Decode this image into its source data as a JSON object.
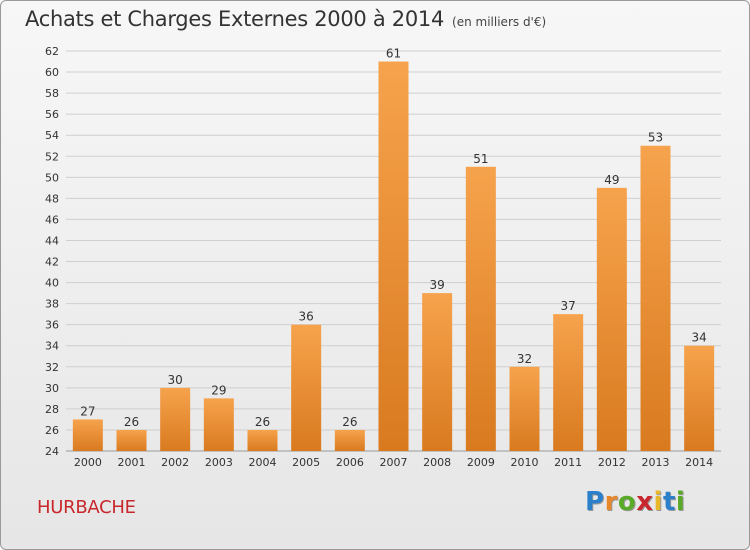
{
  "title": "Achats et Charges Externes 2000 à 2014",
  "unit": "(en milliers d'€)",
  "commune": "HURBACHE",
  "brand": {
    "text": "Proxiti",
    "letter_colors": [
      "#2c7fc9",
      "#e8862a",
      "#5aaa2a",
      "#c8282d",
      "#e8b82a",
      "#2c7fc9",
      "#5aaa2a"
    ]
  },
  "colors": {
    "bar_light": "#f6a34d",
    "bar_dark": "#d97a1f",
    "grid": "#cfcfcf",
    "text": "#333333"
  },
  "chart_data": {
    "type": "bar",
    "categories": [
      "2000",
      "2001",
      "2002",
      "2003",
      "2004",
      "2005",
      "2006",
      "2007",
      "2008",
      "2009",
      "2010",
      "2011",
      "2012",
      "2013",
      "2014"
    ],
    "values": [
      27,
      26,
      30,
      29,
      26,
      36,
      26,
      61,
      39,
      51,
      32,
      37,
      49,
      53,
      34
    ],
    "ylim": [
      24,
      62
    ],
    "yticks": [
      24,
      26,
      28,
      30,
      32,
      34,
      36,
      38,
      40,
      42,
      44,
      46,
      48,
      50,
      52,
      54,
      56,
      58,
      60,
      62
    ],
    "grid": true,
    "data_labels": true
  }
}
